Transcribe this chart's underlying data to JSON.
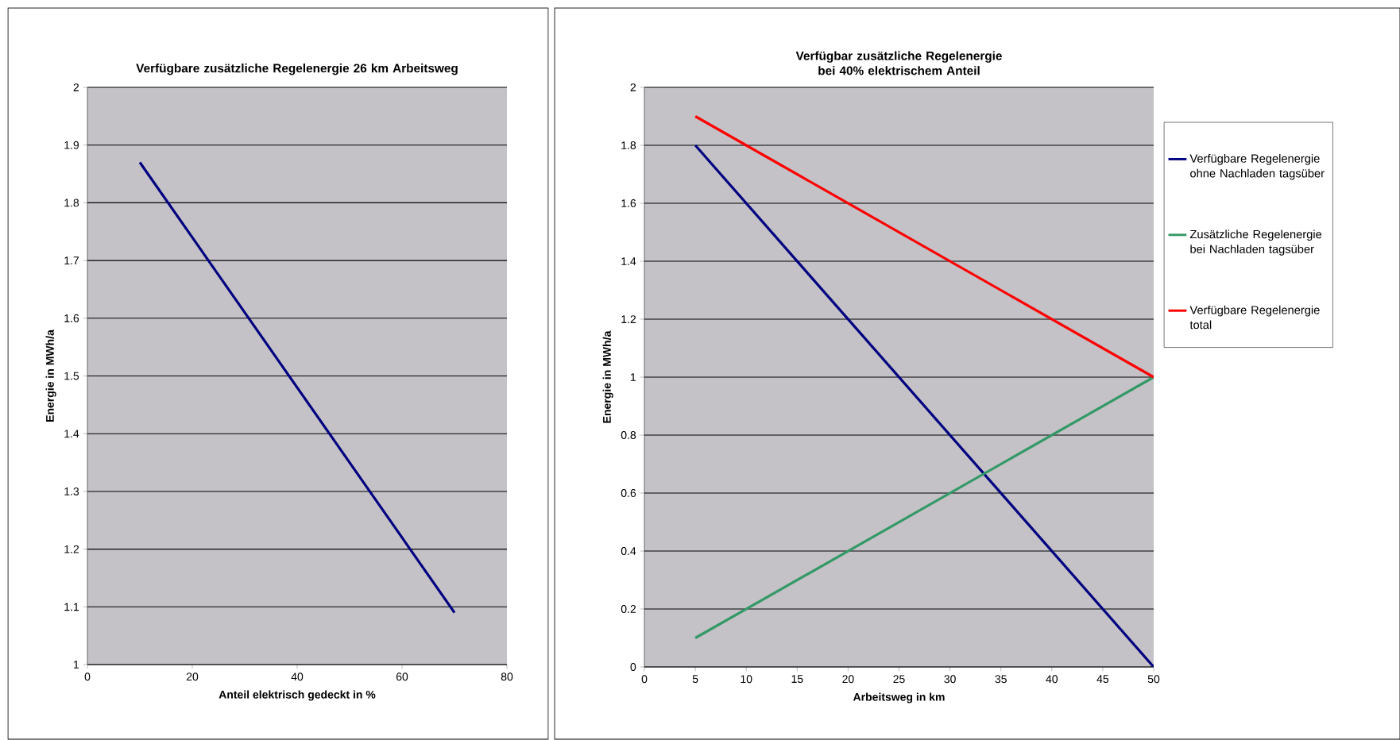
{
  "chart_data": [
    {
      "type": "line",
      "title": "Verfügbare zusätzliche  Regelenergie 26 km Arbeitsweg",
      "xlabel": "Anteil elektrisch gedeckt in %",
      "ylabel": "Energie in MWh/a",
      "x": [
        10,
        70
      ],
      "series": [
        {
          "color": "#000080",
          "values": [
            1.87,
            1.09
          ]
        }
      ],
      "xlim": [
        0,
        80
      ],
      "ylim": [
        1,
        2
      ],
      "xticks": [
        0,
        20,
        40,
        60,
        80
      ],
      "yticks": [
        1,
        1.1,
        1.2,
        1.3,
        1.4,
        1.5,
        1.6,
        1.7,
        1.8,
        1.9,
        2
      ],
      "grid": "y",
      "legend": false
    },
    {
      "type": "line",
      "title": "Verfügbar zusätzliche Regelenergie bei 40% elektrischem Anteil",
      "xlabel": "Arbeitsweg in km",
      "ylabel": "Energie in MWh/a",
      "x": [
        5,
        50
      ],
      "series": [
        {
          "name": "Verfügbare Regelenergie ohne Nachladen tagsüber",
          "color": "#000080",
          "values": [
            1.8,
            0
          ]
        },
        {
          "name": "Zusätzliche Regelenergie bei Nachladen tagsüber",
          "color": "#339966",
          "values": [
            0.1,
            1.0
          ]
        },
        {
          "name": "Verfügbare Regelenergie total",
          "color": "#ff0000",
          "values": [
            1.9,
            1.0
          ]
        }
      ],
      "xlim": [
        0,
        50
      ],
      "ylim": [
        0,
        2
      ],
      "xticks": [
        0,
        5,
        10,
        15,
        20,
        25,
        30,
        35,
        40,
        45,
        50
      ],
      "yticks": [
        0,
        0.2,
        0.4,
        0.6,
        0.8,
        1,
        1.2,
        1.4,
        1.6,
        1.8,
        2
      ],
      "grid": "y",
      "legend": "right"
    }
  ]
}
